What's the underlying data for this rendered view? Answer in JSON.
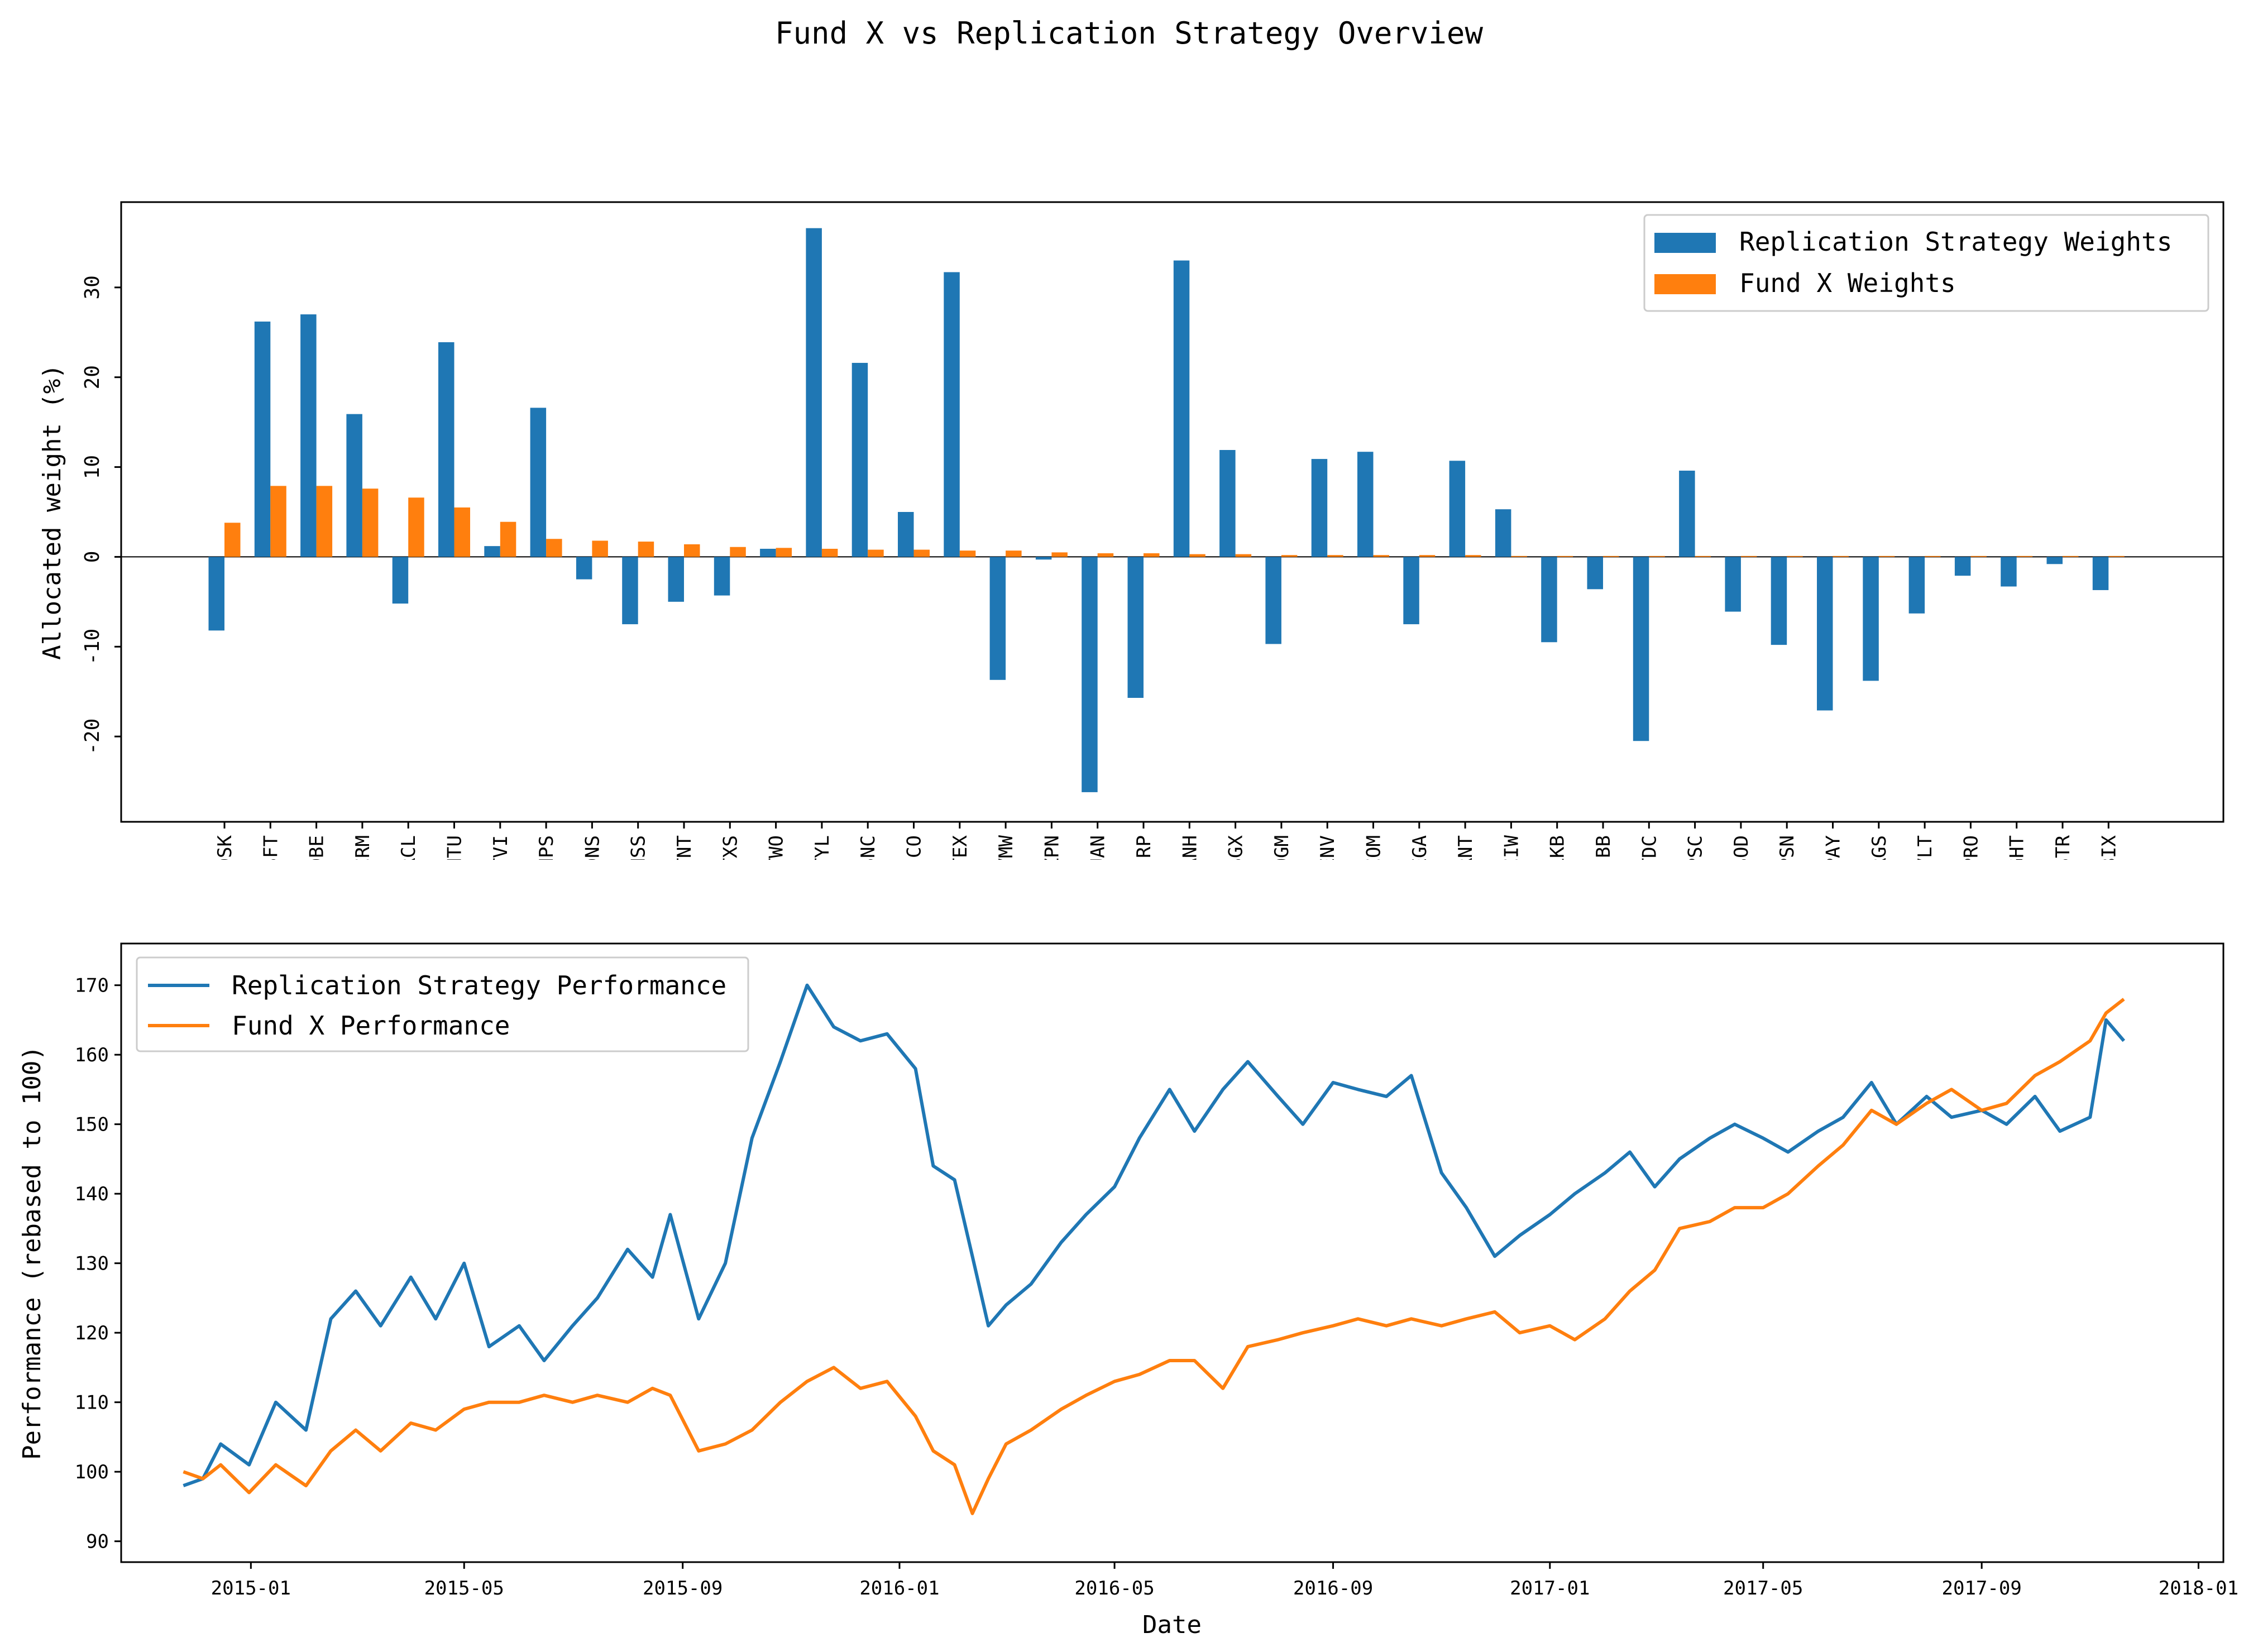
{
  "title": "Fund X vs Replication Strategy Overview",
  "colors": {
    "replication": "#1f77b4",
    "fund": "#ff7f0e"
  },
  "chart_data": [
    {
      "type": "bar",
      "ylabel": "Allocated weight (%)",
      "xlabel": "",
      "ylim": [
        -29.5,
        39.5
      ],
      "yticks": [
        -20,
        -10,
        0,
        10,
        20,
        30
      ],
      "zero_line": true,
      "legend_position": "top-right",
      "categories": [
        "ADSK",
        "MSFT",
        "ADBE",
        "CRM",
        "ORCL",
        "INTU",
        "ATVI",
        "SNPS",
        "CDNS",
        "ANSS",
        "FTNT",
        "CTXS",
        "TTWO",
        "TYL",
        "SSNC",
        "FICO",
        "OTEX",
        "VMW",
        "AZPN",
        "NUAN",
        "RP",
        "MANH",
        "DSGX",
        "LOGM",
        "ENV",
        "JCOM",
        "PEGA",
        "VRNT",
        "ACIW",
        "BLKB",
        "BB",
        "TDC",
        "SPSC",
        "CSOD",
        "LPSN",
        "EPAY",
        "PRGS",
        "CVLT",
        "PRO",
        "EGHT",
        "MSTR",
        "EBIX"
      ],
      "series": [
        {
          "name": "Replication Strategy Weights",
          "color": "#1f77b4",
          "values": [
            -8.2,
            26.2,
            27.0,
            15.9,
            -5.2,
            23.9,
            1.2,
            16.6,
            -2.5,
            -7.5,
            -5.0,
            -4.3,
            0.9,
            36.6,
            21.6,
            5.0,
            31.7,
            -13.7,
            -0.3,
            -26.2,
            -15.7,
            33.0,
            11.9,
            -9.7,
            10.9,
            11.7,
            -7.5,
            10.7,
            5.3,
            -9.5,
            -3.6,
            -20.5,
            9.6,
            -6.1,
            -9.8,
            -17.1,
            -13.8,
            -6.3,
            -2.1,
            -3.3,
            -0.8,
            -3.7
          ]
        },
        {
          "name": "Fund X Weights",
          "color": "#ff7f0e",
          "values": [
            3.8,
            7.9,
            7.9,
            7.6,
            6.6,
            5.5,
            3.9,
            2.0,
            1.8,
            1.7,
            1.4,
            1.1,
            1.0,
            0.9,
            0.8,
            0.8,
            0.7,
            0.7,
            0.5,
            0.4,
            0.4,
            0.3,
            0.3,
            0.2,
            0.2,
            0.2,
            0.2,
            0.2,
            0.1,
            0.1,
            0.1,
            0.1,
            0.1,
            0.1,
            0.1,
            0.1,
            0.1,
            0.1,
            0.1,
            0.1,
            0.1,
            0.1
          ]
        }
      ]
    },
    {
      "type": "line",
      "xlabel": "Date",
      "ylabel": "Performance (rebased to 100)",
      "xlim": [
        "2014-10-20",
        "2018-01-15"
      ],
      "ylim": [
        87.0,
        176.0
      ],
      "xticks": [
        "2015-01",
        "2015-05",
        "2015-09",
        "2016-01",
        "2016-05",
        "2016-09",
        "2017-01",
        "2017-05",
        "2017-09",
        "2018-01"
      ],
      "yticks": [
        90,
        100,
        110,
        120,
        130,
        140,
        150,
        160,
        170
      ],
      "legend_position": "top-left",
      "x": [
        "2014-11-24",
        "2014-12-05",
        "2014-12-15",
        "2014-12-31",
        "2015-01-15",
        "2015-02-01",
        "2015-02-15",
        "2015-03-01",
        "2015-03-15",
        "2015-04-01",
        "2015-04-15",
        "2015-05-01",
        "2015-05-15",
        "2015-06-01",
        "2015-06-15",
        "2015-07-01",
        "2015-07-15",
        "2015-08-01",
        "2015-08-15",
        "2015-08-25",
        "2015-09-10",
        "2015-09-25",
        "2015-10-10",
        "2015-10-26",
        "2015-11-10",
        "2015-11-25",
        "2015-12-10",
        "2015-12-25",
        "2016-01-10",
        "2016-01-20",
        "2016-02-01",
        "2016-02-11",
        "2016-02-20",
        "2016-03-01",
        "2016-03-15",
        "2016-04-01",
        "2016-04-15",
        "2016-05-01",
        "2016-05-15",
        "2016-06-01",
        "2016-06-15",
        "2016-07-01",
        "2016-07-15",
        "2016-08-01",
        "2016-08-15",
        "2016-09-01",
        "2016-09-15",
        "2016-10-01",
        "2016-10-15",
        "2016-11-01",
        "2016-11-15",
        "2016-12-01",
        "2016-12-15",
        "2017-01-01",
        "2017-01-15",
        "2017-02-01",
        "2017-02-15",
        "2017-03-01",
        "2017-03-15",
        "2017-04-01",
        "2017-04-15",
        "2017-05-01",
        "2017-05-15",
        "2017-06-01",
        "2017-06-15",
        "2017-07-01",
        "2017-07-15",
        "2017-08-01",
        "2017-08-15",
        "2017-09-01",
        "2017-09-15",
        "2017-10-01",
        "2017-10-15",
        "2017-11-01",
        "2017-11-10",
        "2017-11-20"
      ],
      "series": [
        {
          "name": "Replication Strategy Performance",
          "color": "#1f77b4",
          "values": [
            98,
            99,
            104,
            101,
            110,
            106,
            122,
            126,
            121,
            128,
            122,
            130,
            118,
            121,
            116,
            121,
            125,
            132,
            128,
            137,
            122,
            130,
            148,
            159,
            170,
            164,
            162,
            163,
            158,
            144,
            142,
            131,
            121,
            124,
            127,
            133,
            137,
            141,
            148,
            155,
            149,
            155,
            159,
            154,
            150,
            156,
            155,
            154,
            157,
            143,
            138,
            131,
            134,
            137,
            140,
            143,
            146,
            141,
            145,
            148,
            150,
            148,
            146,
            149,
            151,
            156,
            150,
            154,
            151,
            152,
            150,
            154,
            149,
            151,
            165,
            162
          ]
        },
        {
          "name": "Fund X Performance",
          "color": "#ff7f0e",
          "values": [
            100,
            99,
            101,
            97,
            101,
            98,
            103,
            106,
            103,
            107,
            106,
            109,
            110,
            110,
            111,
            110,
            111,
            110,
            112,
            111,
            103,
            104,
            106,
            110,
            113,
            115,
            112,
            113,
            108,
            103,
            101,
            94,
            99,
            104,
            106,
            109,
            111,
            113,
            114,
            116,
            116,
            112,
            118,
            119,
            120,
            121,
            122,
            121,
            122,
            121,
            122,
            123,
            120,
            121,
            119,
            122,
            126,
            129,
            135,
            136,
            138,
            138,
            140,
            144,
            147,
            152,
            150,
            153,
            155,
            152,
            153,
            157,
            159,
            162,
            166,
            168
          ]
        }
      ]
    }
  ]
}
